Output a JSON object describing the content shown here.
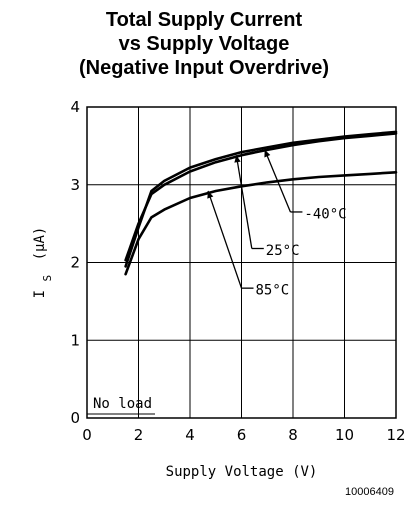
{
  "chart_data": {
    "type": "line",
    "title_lines": [
      "Total Supply Current",
      "vs Supply Voltage",
      "(Negative Input Overdrive)"
    ],
    "xlabel": "Supply Voltage (V)",
    "ylabel": "I_S (µA)",
    "ylabel_main": "I",
    "ylabel_sub": "S",
    "ylabel_unit": "(µA)",
    "xlim": [
      0,
      12
    ],
    "ylim": [
      0,
      4
    ],
    "xticks": [
      0,
      2,
      4,
      6,
      8,
      10,
      12
    ],
    "yticks": [
      0,
      1,
      2,
      3,
      4
    ],
    "grid": true,
    "annotation": "No load",
    "figure_id": "10006409",
    "series": [
      {
        "name": "-40°C",
        "x": [
          1.5,
          2.0,
          2.5,
          3.0,
          4.0,
          5.0,
          6.0,
          7.0,
          8.0,
          9.0,
          10.0,
          11.0,
          12.0
        ],
        "y": [
          1.95,
          2.45,
          2.92,
          3.05,
          3.22,
          3.33,
          3.42,
          3.48,
          3.54,
          3.58,
          3.62,
          3.65,
          3.68
        ]
      },
      {
        "name": "25°C",
        "x": [
          1.5,
          2.0,
          2.5,
          3.0,
          4.0,
          5.0,
          6.0,
          7.0,
          8.0,
          9.0,
          10.0,
          11.0,
          12.0
        ],
        "y": [
          2.03,
          2.5,
          2.88,
          3.0,
          3.17,
          3.29,
          3.38,
          3.45,
          3.51,
          3.56,
          3.6,
          3.63,
          3.66
        ]
      },
      {
        "name": "85°C",
        "x": [
          1.5,
          2.0,
          2.5,
          3.0,
          4.0,
          5.0,
          6.0,
          7.0,
          8.0,
          9.0,
          10.0,
          11.0,
          12.0
        ],
        "y": [
          1.85,
          2.3,
          2.58,
          2.68,
          2.83,
          2.92,
          2.98,
          3.03,
          3.07,
          3.1,
          3.12,
          3.14,
          3.16
        ]
      }
    ],
    "callouts": [
      {
        "series": "-40°C",
        "label": "-40°C"
      },
      {
        "series": "25°C",
        "label": "25°C"
      },
      {
        "series": "85°C",
        "label": "85°C"
      }
    ]
  }
}
